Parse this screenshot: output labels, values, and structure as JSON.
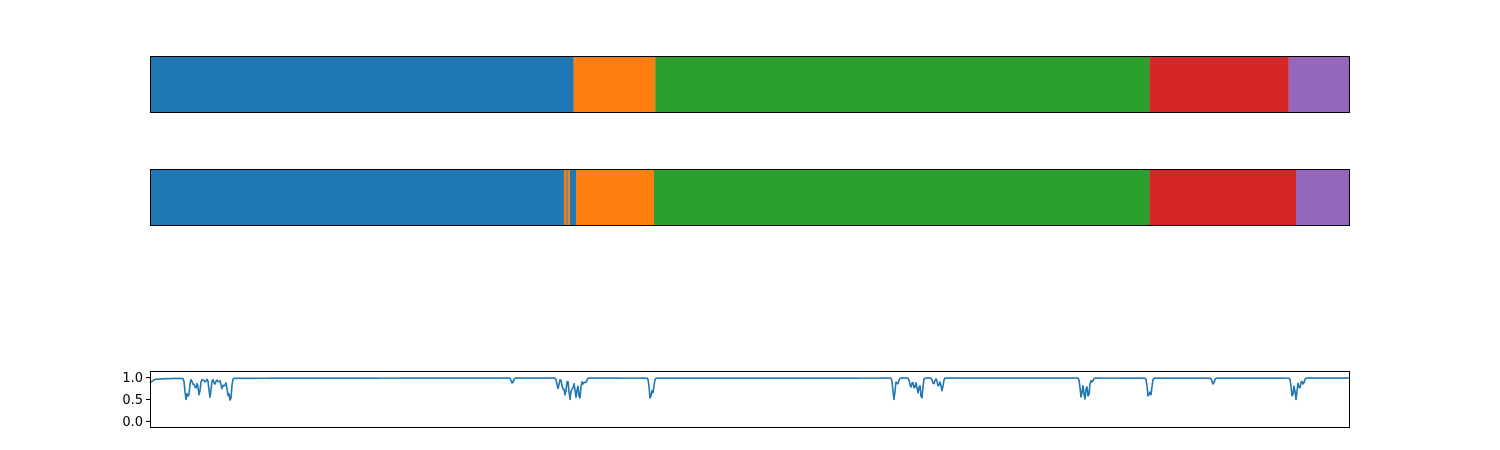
{
  "chart_data": [
    {
      "type": "bar",
      "orientation": "horizontal-stacked",
      "title": "",
      "xlabel": "",
      "ylabel": "",
      "axes_visible": false,
      "xlim": [
        0,
        1
      ],
      "segments": [
        {
          "start": 0.0,
          "end": 0.353,
          "color": "#1f77b4"
        },
        {
          "start": 0.353,
          "end": 0.421,
          "color": "#ff7f0e"
        },
        {
          "start": 0.421,
          "end": 0.833,
          "color": "#2ca02c"
        },
        {
          "start": 0.833,
          "end": 0.949,
          "color": "#d62728"
        },
        {
          "start": 0.949,
          "end": 1.0,
          "color": "#9467bd"
        }
      ]
    },
    {
      "type": "bar",
      "orientation": "horizontal-stacked",
      "title": "",
      "xlabel": "",
      "ylabel": "",
      "axes_visible": false,
      "xlim": [
        0,
        1
      ],
      "segments": [
        {
          "start": 0.0,
          "end": 0.345,
          "color": "#1f77b4"
        },
        {
          "start": 0.345,
          "end": 0.347,
          "color": "#ff7f0e"
        },
        {
          "start": 0.347,
          "end": 0.348,
          "color": "#1f77b4"
        },
        {
          "start": 0.348,
          "end": 0.35,
          "color": "#ff7f0e"
        },
        {
          "start": 0.35,
          "end": 0.355,
          "color": "#1f77b4"
        },
        {
          "start": 0.355,
          "end": 0.42,
          "color": "#ff7f0e"
        },
        {
          "start": 0.42,
          "end": 0.833,
          "color": "#2ca02c"
        },
        {
          "start": 0.833,
          "end": 0.955,
          "color": "#d62728"
        },
        {
          "start": 0.955,
          "end": 1.0,
          "color": "#9467bd"
        }
      ]
    },
    {
      "type": "line",
      "title": "",
      "xlabel": "",
      "ylabel": "",
      "xlim": [
        0,
        1
      ],
      "ylim": [
        -0.15,
        1.15
      ],
      "yticks": [
        0.0,
        0.5,
        1.0
      ],
      "ytick_labels": [
        "0.0",
        "0.5",
        "1.0"
      ],
      "grid": false,
      "series": [
        {
          "color": "#1f77b4",
          "baseline": [
            [
              0.0,
              0.88
            ],
            [
              0.004,
              0.96
            ],
            [
              0.01,
              0.97
            ],
            [
              0.02,
              0.98
            ],
            [
              0.1,
              0.985
            ],
            [
              0.3,
              0.99
            ],
            [
              0.5,
              0.985
            ],
            [
              0.7,
              0.99
            ],
            [
              0.9,
              0.985
            ],
            [
              1.0,
              0.99
            ]
          ],
          "dips": [
            [
              0.03,
              0.5
            ],
            [
              0.032,
              0.55
            ],
            [
              0.036,
              0.85
            ],
            [
              0.038,
              0.75
            ],
            [
              0.041,
              0.6
            ],
            [
              0.044,
              0.95
            ],
            [
              0.046,
              0.9
            ],
            [
              0.05,
              0.55
            ],
            [
              0.054,
              0.85
            ],
            [
              0.057,
              0.9
            ],
            [
              0.06,
              0.75
            ],
            [
              0.062,
              0.8
            ],
            [
              0.065,
              0.6
            ],
            [
              0.067,
              0.45
            ],
            [
              0.302,
              0.87
            ],
            [
              0.34,
              0.75
            ],
            [
              0.344,
              0.75
            ],
            [
              0.346,
              0.6
            ],
            [
              0.35,
              0.5
            ],
            [
              0.352,
              0.72
            ],
            [
              0.355,
              0.55
            ],
            [
              0.358,
              0.5
            ],
            [
              0.361,
              0.85
            ],
            [
              0.363,
              0.88
            ],
            [
              0.417,
              0.5
            ],
            [
              0.419,
              0.65
            ],
            [
              0.62,
              0.5
            ],
            [
              0.623,
              0.85
            ],
            [
              0.634,
              0.78
            ],
            [
              0.637,
              0.75
            ],
            [
              0.64,
              0.65
            ],
            [
              0.643,
              0.5
            ],
            [
              0.653,
              0.85
            ],
            [
              0.657,
              0.8
            ],
            [
              0.66,
              0.7
            ],
            [
              0.776,
              0.55
            ],
            [
              0.779,
              0.5
            ],
            [
              0.782,
              0.55
            ],
            [
              0.785,
              0.9
            ],
            [
              0.832,
              0.55
            ],
            [
              0.834,
              0.6
            ],
            [
              0.886,
              0.85
            ],
            [
              0.952,
              0.55
            ],
            [
              0.955,
              0.5
            ],
            [
              0.958,
              0.75
            ],
            [
              0.961,
              0.85
            ]
          ]
        }
      ]
    }
  ]
}
